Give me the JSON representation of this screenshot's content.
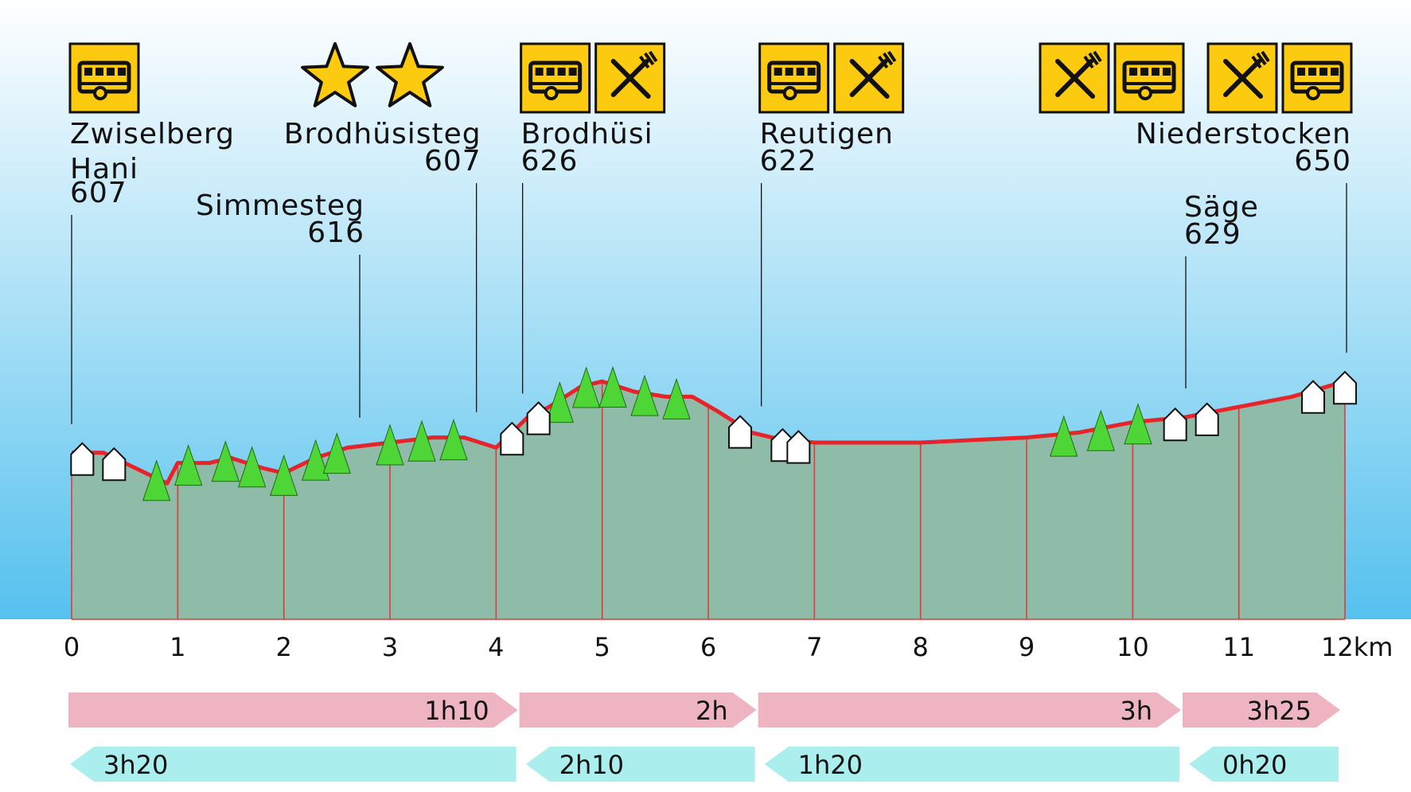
{
  "chart_data": {
    "type": "area",
    "x_unit": "km",
    "xlim": [
      0,
      12
    ],
    "x_ticks": [
      "0",
      "1",
      "2",
      "3",
      "4",
      "5",
      "6",
      "7",
      "8",
      "9",
      "10",
      "11",
      "12km"
    ],
    "profile": {
      "x": [
        0,
        0.3,
        0.6,
        0.9,
        1.0,
        1.3,
        1.5,
        1.8,
        2.0,
        2.3,
        2.6,
        3.0,
        3.4,
        3.7,
        4.0,
        4.3,
        4.5,
        4.8,
        5.0,
        5.3,
        5.6,
        5.85,
        6.1,
        6.4,
        6.6,
        7.0,
        8.0,
        9.0,
        9.5,
        10.0,
        10.5,
        11.0,
        11.5,
        12.0
      ],
      "y": [
        608,
        608,
        605,
        602,
        606,
        606,
        607,
        605,
        604,
        607,
        609,
        610,
        611,
        611,
        609,
        615,
        617,
        621,
        622,
        620,
        619,
        619,
        616,
        612,
        611,
        610,
        610,
        611,
        612,
        614,
        615,
        617,
        619,
        622
      ]
    },
    "points": [
      {
        "name_lines": [
          "Zwiselberg",
          "Hani"
        ],
        "elevation": "607",
        "km": 0.0,
        "icons": [
          "bus-icon"
        ]
      },
      {
        "name_lines": [
          "Simmesteg"
        ],
        "elevation": "616",
        "km": 2.7,
        "icons": []
      },
      {
        "name_lines": [
          "Brodhüsisteg"
        ],
        "elevation": "607",
        "km": 3.8,
        "icons": [
          "star-icon",
          "star-icon"
        ]
      },
      {
        "name_lines": [
          "Brodhüsi"
        ],
        "elevation": "626",
        "km": 4.25,
        "icons": [
          "bus-icon",
          "restaurant-icon"
        ]
      },
      {
        "name_lines": [
          "Reutigen"
        ],
        "elevation": "622",
        "km": 6.5,
        "icons": [
          "bus-icon",
          "restaurant-icon"
        ]
      },
      {
        "name_lines": [
          "Säge"
        ],
        "elevation": "629",
        "km": 10.5,
        "icons": [
          "restaurant-icon",
          "bus-icon"
        ]
      },
      {
        "name_lines": [
          "Niederstocken"
        ],
        "elevation": "650",
        "km": 12.0,
        "icons": [
          "restaurant-icon",
          "bus-icon"
        ]
      }
    ],
    "trees_km": [
      0.8,
      1.1,
      1.45,
      1.7,
      2.0,
      2.3,
      2.5,
      3.0,
      3.3,
      3.6,
      4.6,
      4.85,
      5.1,
      5.4,
      5.7,
      9.35,
      9.7,
      10.05
    ],
    "houses_km": [
      0.1,
      0.4,
      4.15,
      4.4,
      6.3,
      6.7,
      6.85,
      10.4,
      10.7,
      11.7,
      12.0
    ],
    "forward_durations": [
      {
        "label": "1h10",
        "from_km": 0,
        "to_km": 4.25
      },
      {
        "label": "2h",
        "from_km": 4.25,
        "to_km": 6.5
      },
      {
        "label": "3h",
        "from_km": 6.5,
        "to_km": 10.5
      },
      {
        "label": "3h25",
        "from_km": 10.5,
        "to_km": 12
      }
    ],
    "backward_durations": [
      {
        "label": "3h20",
        "from_km": 0,
        "to_km": 4.25
      },
      {
        "label": "2h10",
        "from_km": 4.25,
        "to_km": 6.5
      },
      {
        "label": "1h20",
        "from_km": 6.5,
        "to_km": 10.5
      },
      {
        "label": "0h20",
        "from_km": 10.5,
        "to_km": 12
      }
    ]
  },
  "colors": {
    "sky_top": "#ffffff",
    "sky_bottom": "#55c1ee",
    "terrain_fill": "#8fbca8",
    "profile_line": "#e8232a",
    "km_gridline": "#e23a3a",
    "icon_yellow": "#fccb0f",
    "tree_green": "#4dd636",
    "forward_bar": "#efb4c1",
    "backward_bar": "#abeeee"
  }
}
